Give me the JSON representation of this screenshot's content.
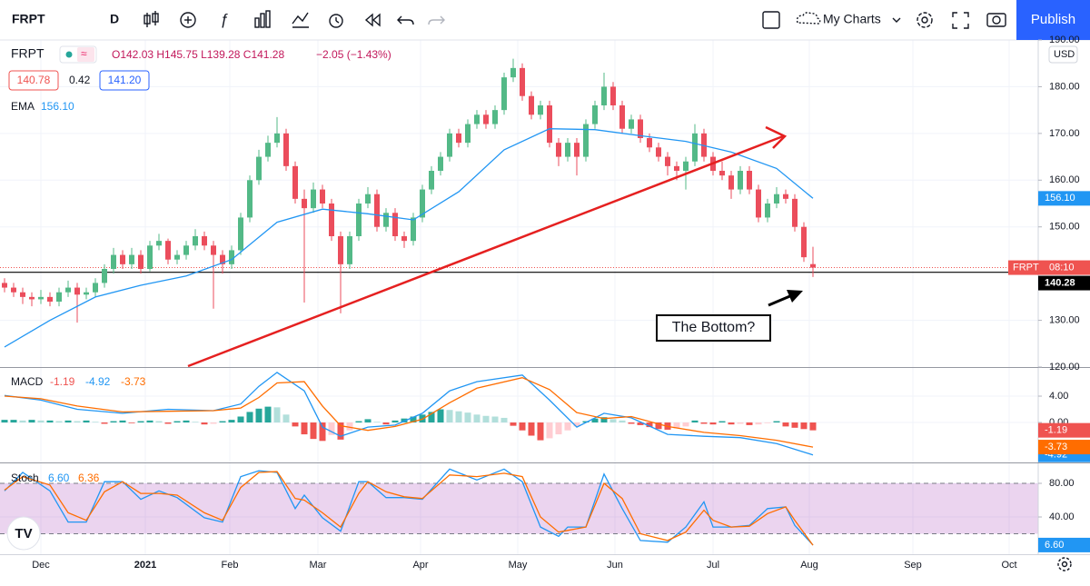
{
  "chart_data": {
    "type": "candlestick",
    "symbol": "FRPT",
    "interval": "D",
    "toolbar": {
      "my_charts": "My Charts",
      "publish": "Publish"
    },
    "legend": {
      "symbol": "FRPT",
      "ohlc": "O142.03 H145.75 L139.28 C141.28",
      "change": "−2.05 (−1.43%)",
      "bid": "140.78",
      "spread": "0.42",
      "ask": "141.20"
    },
    "up_color": "#53b987",
    "down_color": "#eb4d5c",
    "candles": [
      [
        138,
        139,
        136,
        137
      ],
      [
        137,
        138,
        135,
        136
      ],
      [
        136,
        137,
        133.5,
        135
      ],
      [
        135,
        136,
        133,
        134.5
      ],
      [
        134.5,
        136.5,
        133.5,
        135
      ],
      [
        135,
        136,
        133,
        134
      ],
      [
        134,
        137,
        133,
        136
      ],
      [
        136,
        138.5,
        135,
        137
      ],
      [
        137,
        138,
        129.5,
        135.5
      ],
      [
        135.5,
        137,
        134.5,
        136
      ],
      [
        136,
        139,
        135,
        138
      ],
      [
        138,
        142,
        137,
        141
      ],
      [
        141,
        145.5,
        140,
        144
      ],
      [
        144,
        145,
        141,
        142
      ],
      [
        142,
        145.5,
        141,
        144
      ],
      [
        144,
        145,
        140,
        141
      ],
      [
        141,
        147,
        140.5,
        146
      ],
      [
        146,
        148.5,
        145,
        147
      ],
      [
        147,
        147.5,
        142,
        143
      ],
      [
        143,
        145,
        142,
        144
      ],
      [
        144,
        147,
        143,
        146
      ],
      [
        146,
        149.5,
        145,
        148
      ],
      [
        148,
        149,
        145,
        146
      ],
      [
        146,
        147,
        132.5,
        144
      ],
      [
        144,
        145,
        140,
        142
      ],
      [
        142,
        146,
        141,
        145
      ],
      [
        145,
        153,
        144,
        152
      ],
      [
        152,
        161,
        151,
        160
      ],
      [
        160,
        166.5,
        159,
        165
      ],
      [
        165,
        169.5,
        164,
        168
      ],
      [
        168,
        173.5,
        167,
        170
      ],
      [
        170,
        171,
        162,
        163
      ],
      [
        163,
        164,
        155,
        156
      ],
      [
        156,
        158,
        133.8,
        154
      ],
      [
        154,
        159.5,
        153,
        158
      ],
      [
        158,
        159,
        154,
        155
      ],
      [
        155,
        156,
        147,
        148
      ],
      [
        148,
        149,
        131.5,
        142
      ],
      [
        142,
        149,
        141,
        148
      ],
      [
        148,
        156,
        147,
        155
      ],
      [
        155,
        158.5,
        154,
        157
      ],
      [
        157,
        158,
        149,
        150
      ],
      [
        150,
        154,
        149,
        153
      ],
      [
        153,
        154,
        147,
        148
      ],
      [
        148,
        149,
        145.5,
        147
      ],
      [
        147,
        153,
        146,
        152
      ],
      [
        152,
        159,
        151,
        158
      ],
      [
        158,
        163,
        157,
        162
      ],
      [
        162,
        166,
        161,
        165
      ],
      [
        165,
        171,
        164,
        170
      ],
      [
        170,
        171,
        167,
        168
      ],
      [
        168,
        173,
        167,
        172
      ],
      [
        172,
        175,
        171,
        174
      ],
      [
        174,
        175,
        171,
        172
      ],
      [
        172,
        176,
        171,
        175
      ],
      [
        175,
        183,
        174,
        182
      ],
      [
        182,
        186,
        181,
        184
      ],
      [
        184,
        185,
        177,
        178
      ],
      [
        178,
        179,
        173,
        174
      ],
      [
        174,
        177,
        173,
        176
      ],
      [
        176,
        177,
        167,
        168
      ],
      [
        168,
        169,
        163,
        165
      ],
      [
        165,
        169,
        164,
        168
      ],
      [
        168,
        169,
        161,
        165
      ],
      [
        165,
        173,
        164,
        172
      ],
      [
        172,
        177,
        171,
        176
      ],
      [
        176,
        183,
        175,
        180
      ],
      [
        180,
        181,
        175,
        176
      ],
      [
        176,
        177,
        170,
        171
      ],
      [
        171,
        174,
        170,
        173
      ],
      [
        173,
        174,
        168,
        169
      ],
      [
        169,
        170,
        166,
        167
      ],
      [
        167,
        168,
        164,
        165
      ],
      [
        165,
        166,
        161,
        163
      ],
      [
        163,
        164,
        160,
        162
      ],
      [
        162,
        165,
        158,
        164
      ],
      [
        164,
        172,
        163,
        170
      ],
      [
        170,
        171,
        164,
        165
      ],
      [
        165,
        166,
        161,
        162
      ],
      [
        162,
        164,
        160,
        161
      ],
      [
        161,
        162,
        156,
        158
      ],
      [
        158,
        163,
        157,
        162
      ],
      [
        162,
        163,
        157,
        158
      ],
      [
        158,
        159,
        151,
        152
      ],
      [
        152,
        156,
        151,
        155
      ],
      [
        155,
        158.5,
        154,
        157
      ],
      [
        157,
        158,
        155,
        156
      ],
      [
        156,
        157,
        149,
        150
      ],
      [
        150,
        151,
        142.5,
        143.5
      ],
      [
        142.03,
        145.75,
        139.28,
        141.28
      ]
    ],
    "xlim": [
      -0.5,
      113.8
    ],
    "xticks": [
      {
        "value": 4,
        "label": "Dec"
      },
      {
        "value": 15.5,
        "label": "2021",
        "bold": true
      },
      {
        "value": 24.8,
        "label": "Feb"
      },
      {
        "value": 34.5,
        "label": "Mar"
      },
      {
        "value": 45.8,
        "label": "Apr"
      },
      {
        "value": 56.5,
        "label": "May"
      },
      {
        "value": 67.2,
        "label": "Jun"
      },
      {
        "value": 78,
        "label": "Jul"
      },
      {
        "value": 88.6,
        "label": "Aug"
      },
      {
        "value": 100,
        "label": "Sep"
      },
      {
        "value": 110.6,
        "label": "Oct"
      }
    ],
    "ylim": [
      120,
      190
    ],
    "yticks": [
      {
        "value": 120,
        "label": "120.00"
      },
      {
        "value": 130,
        "label": "130.00"
      },
      {
        "value": 150,
        "label": "150.00"
      },
      {
        "value": 160,
        "label": "160.00"
      },
      {
        "value": 170,
        "label": "170.00"
      },
      {
        "value": 180,
        "label": "180.00"
      },
      {
        "value": 190,
        "label": "190.00"
      }
    ],
    "grid": true,
    "currency": "USD",
    "last_price": {
      "label": "FRPT",
      "time": "08:10"
    },
    "hline": 140.28,
    "annotation": "The Bottom?",
    "ema": {
      "name": "EMA",
      "color": "#2196f3",
      "last_label": "156.10",
      "x": [
        0,
        5,
        10,
        15,
        20,
        25,
        30,
        35,
        40,
        45,
        50,
        55,
        60,
        65,
        70,
        75,
        80,
        85,
        89
      ],
      "values": [
        124.3,
        130,
        135,
        137.5,
        139.5,
        143,
        151,
        153.8,
        152.8,
        151.5,
        157.5,
        166.5,
        171,
        170.8,
        169.5,
        168.3,
        166,
        162.5,
        156.1
      ]
    },
    "macd": {
      "name": "MACD",
      "ylim": [
        -5.93,
        8.28
      ],
      "yticks": [
        {
          "value": 0,
          "label": "0.00"
        },
        {
          "value": 4,
          "label": "4.00"
        }
      ],
      "histogram": {
        "values": [
          0.4,
          0.4,
          0.3,
          0.4,
          0.3,
          0.3,
          0.2,
          0.3,
          0.2,
          0.3,
          0.1,
          -0.2,
          0.2,
          0.3,
          -0.1,
          0.2,
          0.3,
          0.2,
          -0.2,
          0.2,
          0.3,
          0.1,
          -0.3,
          -0.2,
          0.2,
          0.4,
          0.9,
          1.6,
          2.1,
          2.4,
          2.3,
          1.2,
          -0.6,
          -1.8,
          -2.5,
          -2.8,
          -1.9,
          -2.6,
          -1.2,
          0.2,
          0.5,
          0.1,
          -0.3,
          0.3,
          0.6,
          0.9,
          1.2,
          1.6,
          2.0,
          1.9,
          1.7,
          1.5,
          1.2,
          1.0,
          0.9,
          0.7,
          -0.5,
          -1.2,
          -2.0,
          -2.7,
          -2.4,
          -1.8,
          -1.2,
          -0.6,
          0.2,
          0.6,
          0.8,
          0.5,
          0.3,
          -0.2,
          -0.4,
          -0.7,
          -1.0,
          -1.1,
          -0.9,
          -0.6,
          0.3,
          -0.2,
          -0.3,
          0.2,
          -0.3,
          -0.2,
          -0.4,
          -0.3,
          -0.1,
          0.2,
          -0.6,
          -0.8,
          -1.0,
          -1.19
        ]
      },
      "x": [
        0,
        4,
        8,
        13,
        18,
        23,
        26,
        28,
        30,
        33,
        35,
        37,
        40,
        43,
        46,
        49,
        52,
        57,
        60,
        63,
        66,
        69,
        73,
        77,
        81,
        85,
        89
      ],
      "macd": {
        "color": "#2196f3",
        "values": [
          4.1,
          3.4,
          2.0,
          1.4,
          2.0,
          1.8,
          2.8,
          5.5,
          7.6,
          4.8,
          -0.7,
          -2.1,
          -0.7,
          -0.4,
          1.4,
          4.8,
          6.2,
          7.2,
          3.4,
          -0.7,
          1.4,
          0.7,
          -1.8,
          -2.1,
          -2.3,
          -3.2,
          -4.92
        ]
      },
      "signal": {
        "color": "#ff6d00",
        "values": [
          4.0,
          3.6,
          2.5,
          1.6,
          1.7,
          1.8,
          2.2,
          3.8,
          6.0,
          6.2,
          2.5,
          -0.5,
          -1.2,
          -0.6,
          0.5,
          3.0,
          5.2,
          6.8,
          5.0,
          1.5,
          0.6,
          0.9,
          -0.6,
          -1.5,
          -2.0,
          -2.7,
          -3.73
        ]
      }
    },
    "stoch": {
      "name": "Stoch",
      "ylim": [
        -4.3,
        103.8
      ],
      "yticks": [
        {
          "value": 40,
          "label": "40.00"
        },
        {
          "value": 80,
          "label": "80.00"
        }
      ],
      "bands": [
        20,
        80
      ],
      "x": [
        0,
        2,
        5,
        7,
        9,
        11,
        13,
        15,
        17,
        19,
        22,
        24,
        26,
        28,
        30,
        32,
        33,
        35,
        37,
        39,
        40,
        42,
        44,
        46,
        49,
        52,
        55,
        57,
        59,
        61,
        62,
        64,
        66,
        68,
        70,
        73,
        75,
        77,
        78,
        80,
        82,
        84,
        86,
        87,
        89
      ],
      "k": {
        "color": "#2196f3",
        "last_label": "6.60",
        "values": [
          71,
          93,
          71,
          34,
          34,
          82,
          82,
          61,
          71,
          63,
          39,
          34,
          88,
          95,
          93,
          50,
          66,
          39,
          23,
          82,
          82,
          63,
          63,
          61,
          97,
          84,
          97,
          82,
          28,
          17,
          28,
          28,
          91,
          50,
          12,
          10,
          28,
          58,
          28,
          28,
          30,
          50,
          52,
          30,
          6.6
        ]
      },
      "d": {
        "color": "#ff6d00",
        "values": [
          72,
          88,
          78,
          45,
          36,
          70,
          82,
          68,
          68,
          66,
          45,
          36,
          75,
          93,
          94,
          62,
          60,
          45,
          28,
          68,
          82,
          70,
          64,
          62,
          90,
          88,
          92,
          88,
          40,
          22,
          24,
          28,
          80,
          62,
          20,
          12,
          22,
          48,
          36,
          28,
          29,
          44,
          52,
          36,
          6.36
        ]
      }
    }
  }
}
